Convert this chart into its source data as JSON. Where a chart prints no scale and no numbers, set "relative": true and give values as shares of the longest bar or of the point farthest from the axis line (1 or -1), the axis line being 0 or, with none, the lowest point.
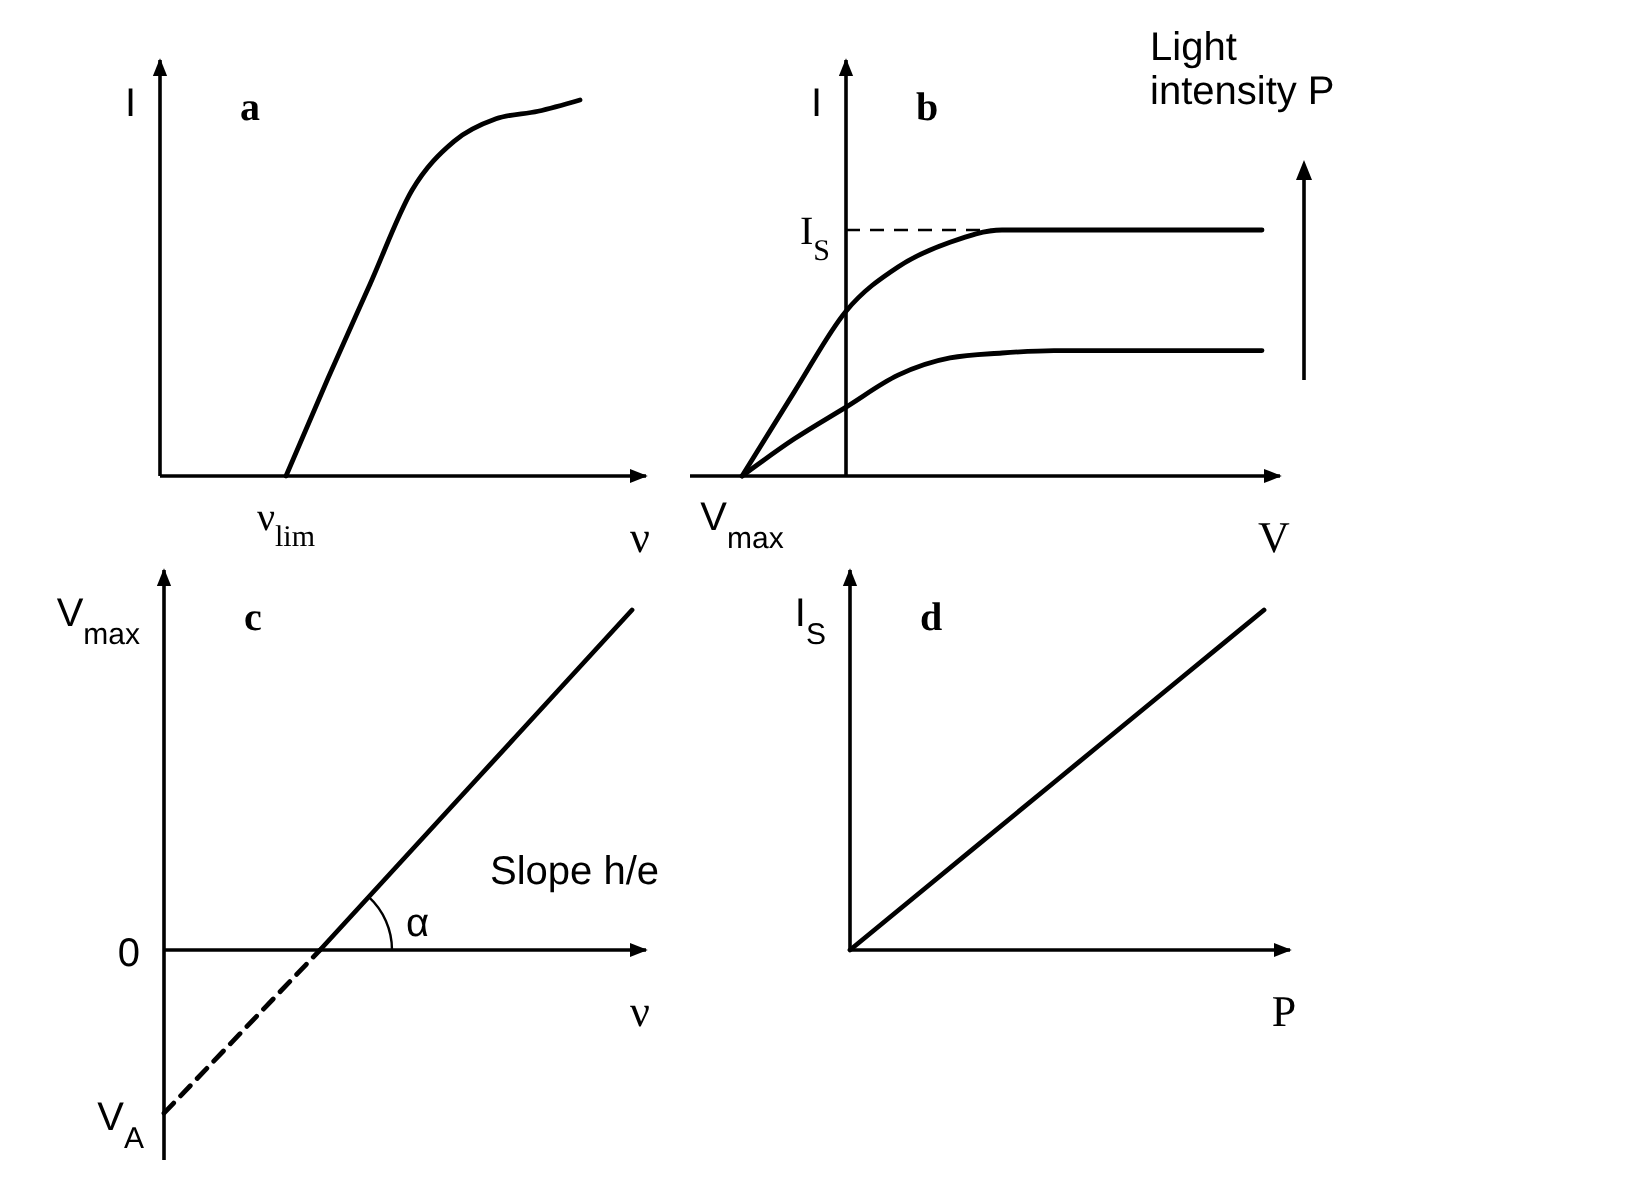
{
  "chart_data": [
    {
      "type": "line",
      "title": "a",
      "xlabel": "ν",
      "ylabel": "I",
      "relative": true,
      "categories": [
        null,
        null,
        null,
        null,
        null,
        null,
        null,
        null,
        null,
        null,
        null
      ],
      "annotations": [
        "ν$_{lim}$"
      ],
      "series": [
        {
          "color": "#000000",
          "values": [
            null,
            null,
            null,
            0,
            0.26,
            0.51,
            0.76,
            0.89,
            0.95,
            0.97,
            1
          ]
        }
      ]
    },
    {
      "type": "line",
      "title": "b",
      "xlabel": "V",
      "ylabel": "I",
      "relative": true,
      "categories": [
        null,
        null,
        null,
        null,
        null,
        null,
        null,
        null,
        null,
        null,
        null
      ],
      "series": [
        {
          "color": "#000000",
          "values": [
            0,
            0.34,
            0.67,
            0.85,
            0.95,
            1,
            1,
            1,
            1,
            1,
            1
          ]
        },
        {
          "color": "#000000",
          "values": [
            0,
            0.15,
            0.28,
            0.41,
            0.48,
            0.5,
            0.51,
            0.51,
            0.51,
            0.51,
            0.51
          ]
        }
      ],
      "ref_lines": [
        {
          "axis": "y",
          "value": 1,
          "label": "I$_{S}$",
          "line_style": "dashed"
        }
      ],
      "annotations": [
        "V$_{max}$",
        "Light intensity P"
      ]
    },
    {
      "type": "line",
      "title": "c",
      "xlabel": "ν",
      "ylabel": "V$_{max}$",
      "relative": true,
      "categories": [
        null,
        null,
        null,
        null,
        null,
        null,
        null
      ],
      "series": [
        {
          "color": "#000000",
          "line_style": "dashed",
          "values": [
            -0.48,
            -0.24,
            0,
            null,
            null,
            null,
            null
          ]
        },
        {
          "color": "#000000",
          "line_style": "solid",
          "values": [
            null,
            null,
            0,
            0.25,
            0.5,
            0.75,
            1
          ]
        }
      ],
      "annotations": [
        "0",
        "V$_{A}$",
        "α",
        "Slope h/e"
      ]
    },
    {
      "type": "line",
      "title": "d",
      "xlabel": "P",
      "ylabel": "I$_{S}$",
      "relative": true,
      "categories": [
        null,
        null,
        null,
        null,
        null,
        null
      ],
      "series": [
        {
          "color": "#000000",
          "values": [
            0,
            0.2,
            0.4,
            0.6,
            0.8,
            1
          ]
        }
      ]
    }
  ]
}
